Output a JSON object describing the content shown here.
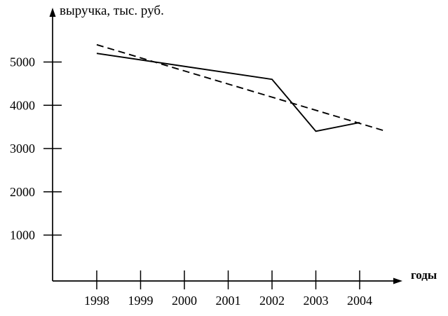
{
  "figure": {
    "background_color": "#ffffff",
    "ink_color": "#000000"
  },
  "chart_data": {
    "type": "line",
    "title": "",
    "ylabel": "выручка, тыс. руб.",
    "xlabel": "годы",
    "x_ticks": [
      1998,
      1999,
      2000,
      2001,
      2002,
      2003,
      2004
    ],
    "y_ticks": [
      1000,
      2000,
      3000,
      4000,
      5000
    ],
    "xlim": [
      1997,
      2005
    ],
    "ylim": [
      0,
      5700
    ],
    "grid": false,
    "legend": false,
    "series": [
      {
        "id": "revenue-actual-line",
        "line_style": "solid",
        "points": [
          {
            "x": 1998,
            "y": 5200
          },
          {
            "x": 2002,
            "y": 4600
          },
          {
            "x": 2003,
            "y": 3400
          },
          {
            "x": 2004,
            "y": 3600
          }
        ],
        "values_at_x_ticks": [
          5200,
          5050,
          4900,
          4750,
          4600,
          3400,
          3600
        ]
      },
      {
        "id": "trend-line",
        "line_style": "dashed",
        "points": [
          {
            "x": 1998,
            "y": 5400
          },
          {
            "x": 2004.6,
            "y": 3400
          }
        ]
      }
    ]
  }
}
